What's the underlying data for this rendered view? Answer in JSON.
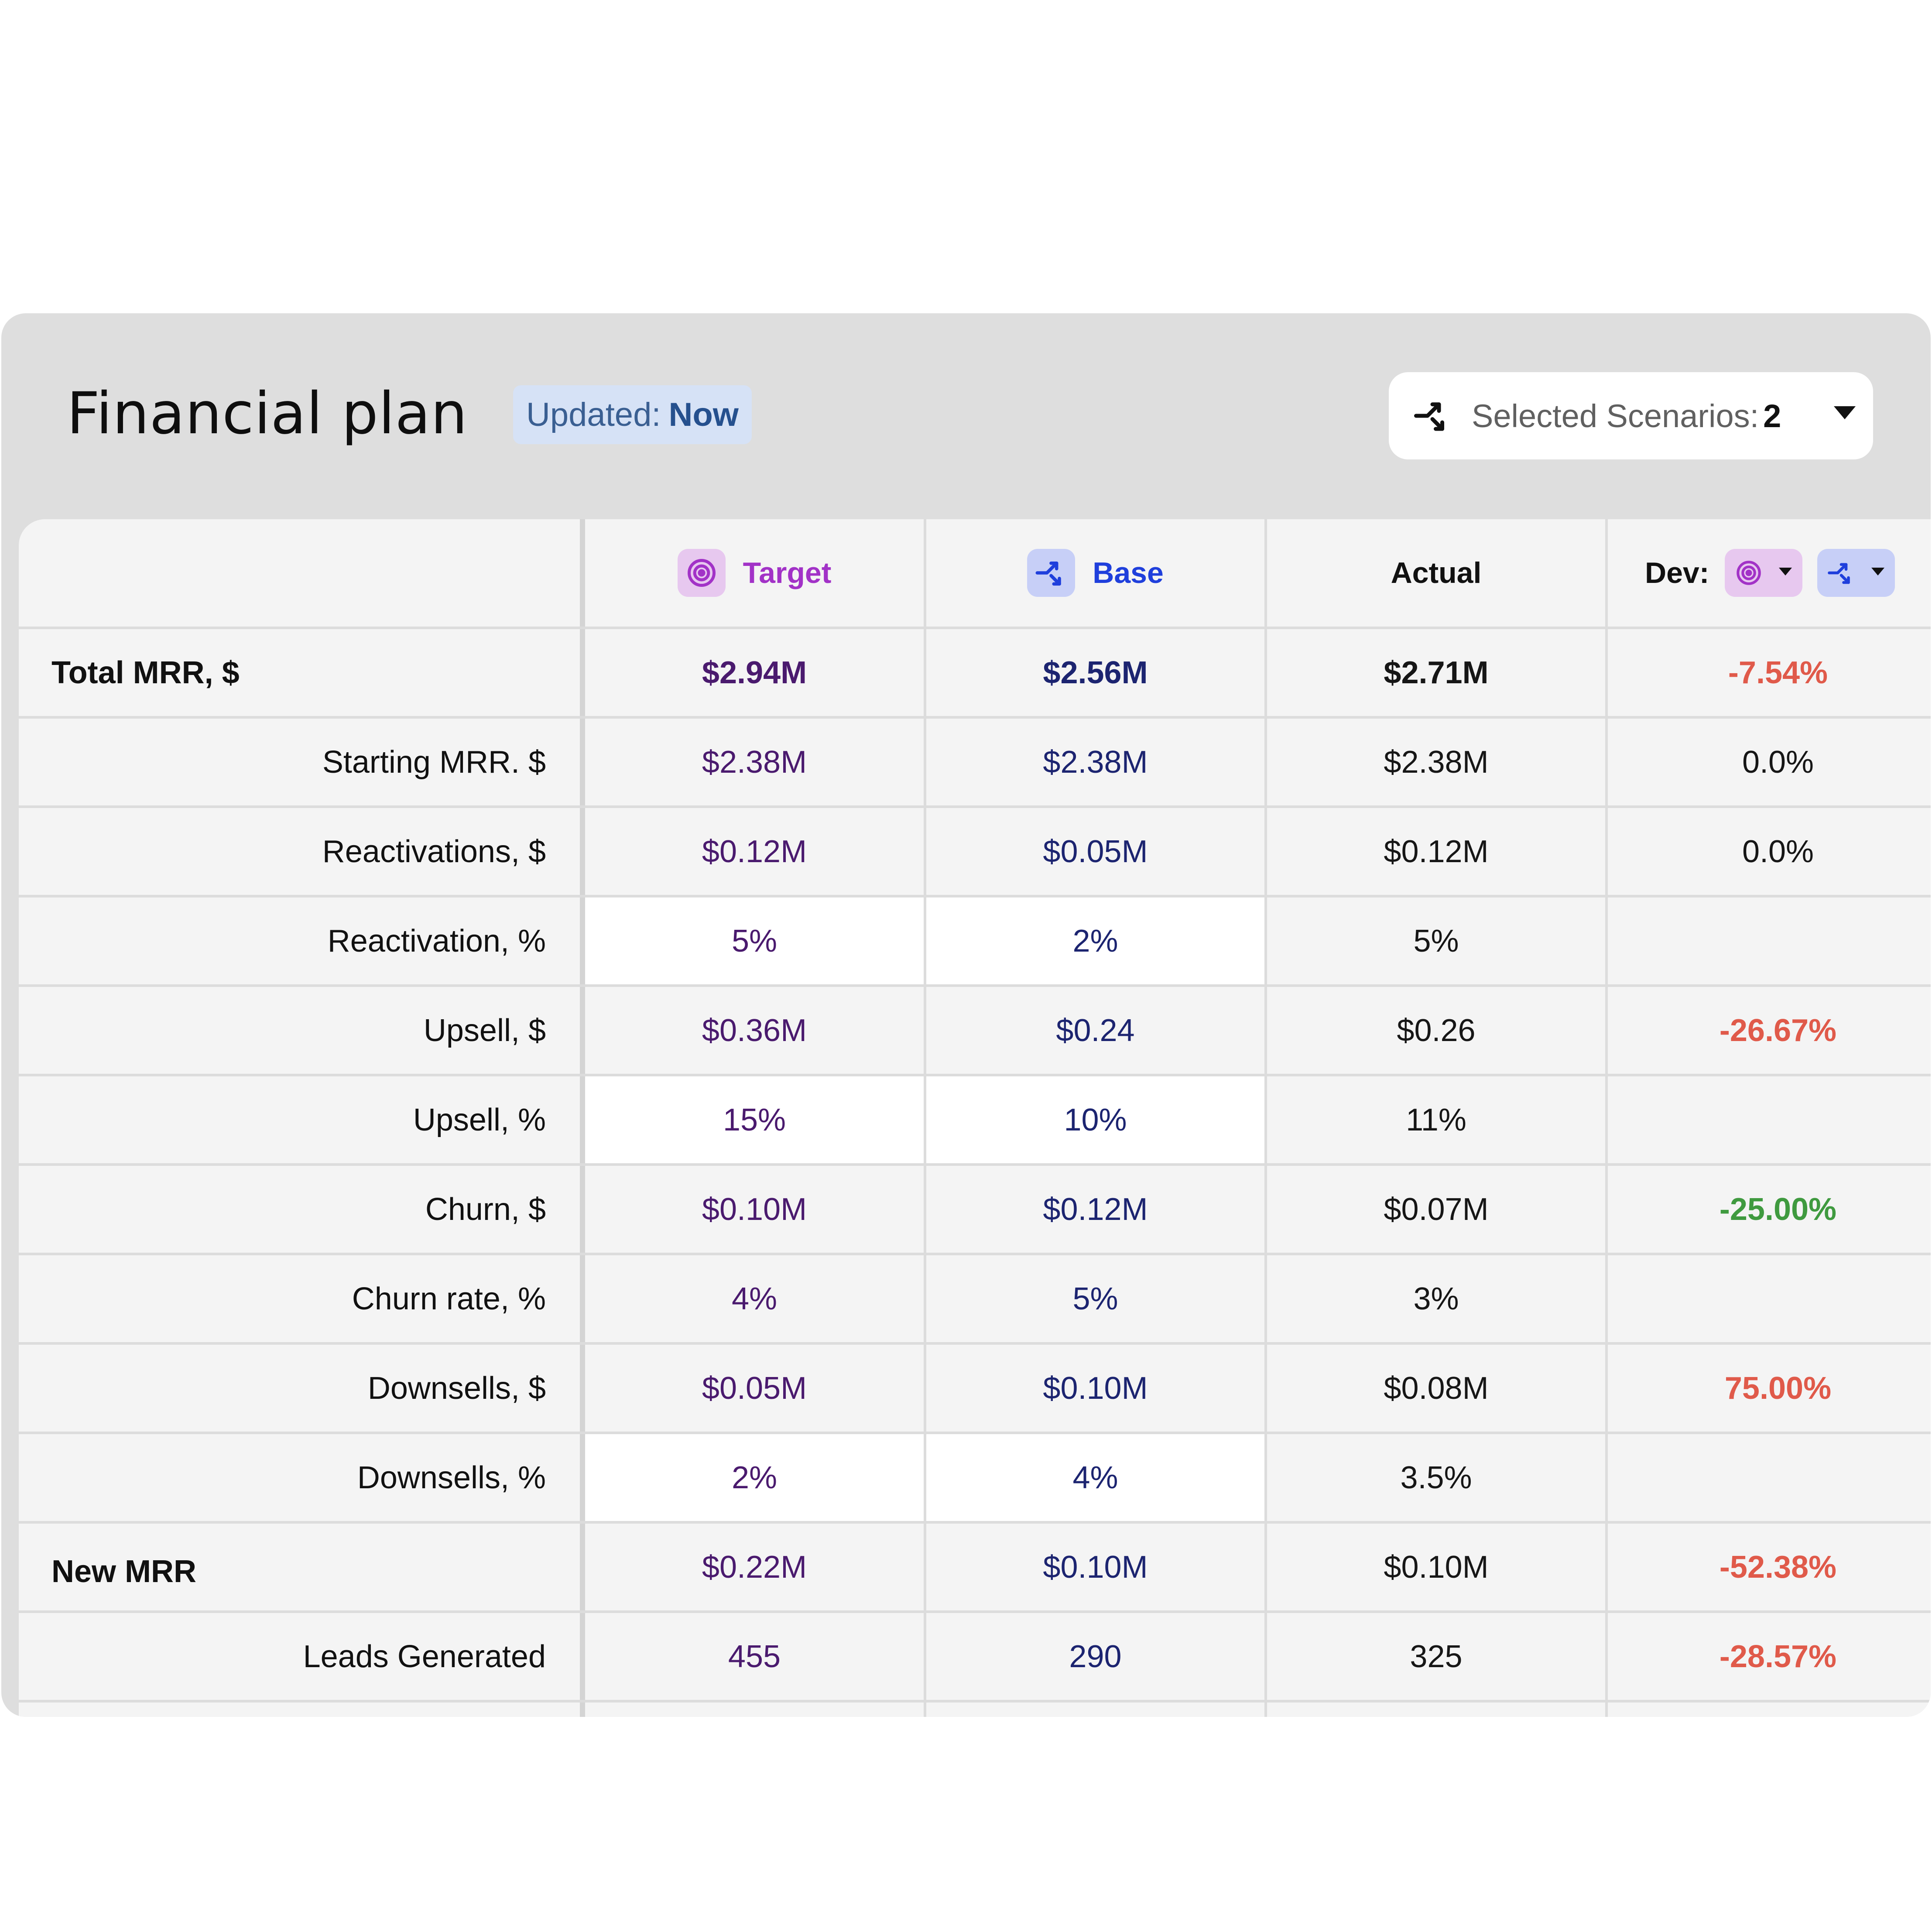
{
  "header": {
    "title": "Financial plan",
    "updated_label": "Updated:",
    "updated_value": "Now",
    "scenarios_label": "Selected Scenarios:",
    "scenarios_count": "2"
  },
  "colors": {
    "target": "#a232c7",
    "target_chip": "#e7c8ef",
    "base": "#1f3fdc",
    "base_chip": "#c7cff7",
    "negative": "#e05a4a",
    "positive": "#3f9a3f",
    "updated_badge": "#d6e2f6"
  },
  "columns": {
    "target": "Target",
    "base": "Base",
    "actual": "Actual",
    "dev": "Dev:"
  },
  "icons": {
    "target": "target-icon",
    "base": "branch-icon",
    "scenarios": "branch-icon",
    "dropdown": "caret-down-icon"
  },
  "rows": [
    {
      "label": "Total MRR, $",
      "target": "$2.94M",
      "base": "$2.56M",
      "actual": "$2.71M",
      "dev": "-7.54%"
    },
    {
      "label": "Starting MRR. $",
      "target": "$2.38M",
      "base": "$2.38M",
      "actual": "$2.38M",
      "dev": "0.0%"
    },
    {
      "label": "Reactivations, $",
      "target": "$0.12M",
      "base": "$0.05M",
      "actual": "$0.12M",
      "dev": "0.0%"
    },
    {
      "label": "Reactivation, %",
      "target": "5%",
      "base": "2%",
      "actual": "5%",
      "dev": ""
    },
    {
      "label": "Upsell, $",
      "target": "$0.36M",
      "base": "$0.24",
      "actual": "$0.26",
      "dev": "-26.67%"
    },
    {
      "label": "Upsell, %",
      "target": "15%",
      "base": "10%",
      "actual": "11%",
      "dev": ""
    },
    {
      "label": "Churn, $",
      "target": "$0.10M",
      "base": "$0.12M",
      "actual": "$0.07M",
      "dev": "-25.00%"
    },
    {
      "label": "Churn rate, %",
      "target": "4%",
      "base": "5%",
      "actual": "3%",
      "dev": ""
    },
    {
      "label": "Downsells, $",
      "target": "$0.05M",
      "base": "$0.10M",
      "actual": "$0.08M",
      "dev": "75.00%"
    },
    {
      "label": "Downsells, %",
      "target": "2%",
      "base": "4%",
      "actual": "3.5%",
      "dev": ""
    },
    {
      "label": "New MRR",
      "target": "$0.22M",
      "base": "$0.10M",
      "actual": "$0.10M",
      "dev": "-52.38%"
    },
    {
      "label": "Leads Generated",
      "target": "455",
      "base": "290",
      "actual": "325",
      "dev": "-28.57%"
    }
  ]
}
